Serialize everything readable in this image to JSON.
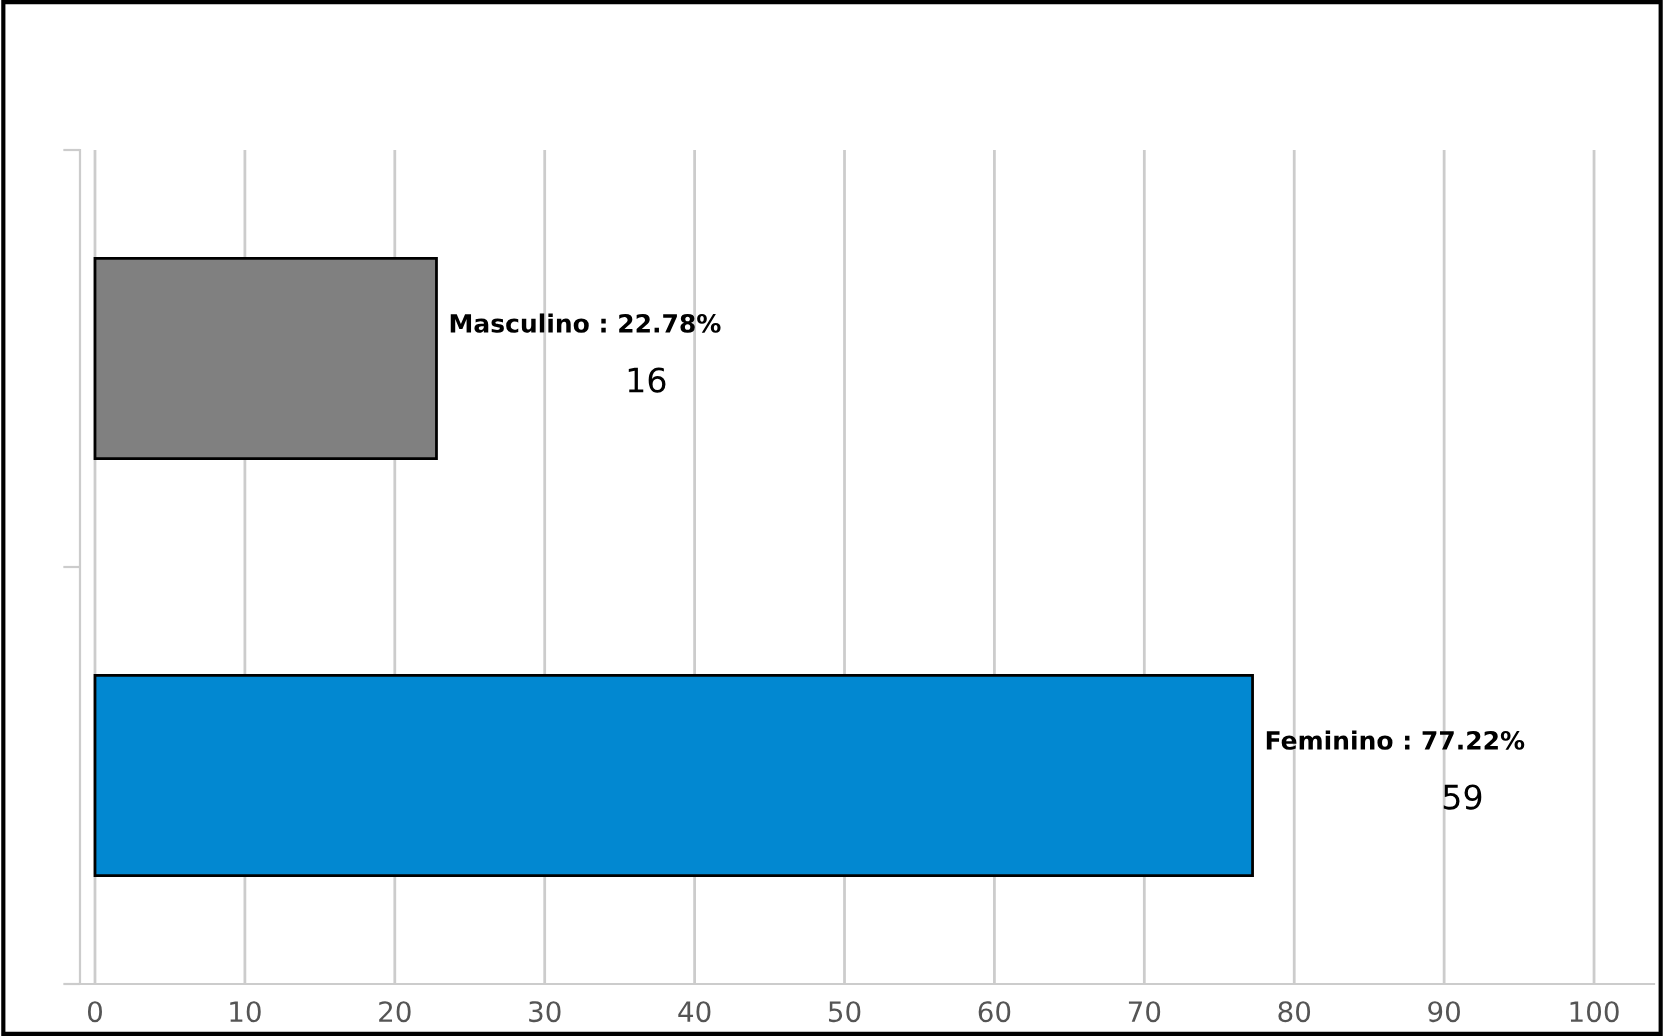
{
  "chart_data": {
    "type": "bar",
    "orientation": "horizontal",
    "categories": [
      null,
      null
    ],
    "values": [
      22.78,
      77.22
    ],
    "colors": [
      "#808080",
      "#0288d1"
    ],
    "value_labels": [
      "Masculino : 22.78%\n16",
      "Feminino : 77.22%\n59"
    ],
    "xlim": [
      -1,
      104
    ],
    "xticks": [
      0,
      10,
      20,
      30,
      40,
      50,
      60,
      70,
      80,
      90,
      100
    ],
    "grid": "x"
  }
}
